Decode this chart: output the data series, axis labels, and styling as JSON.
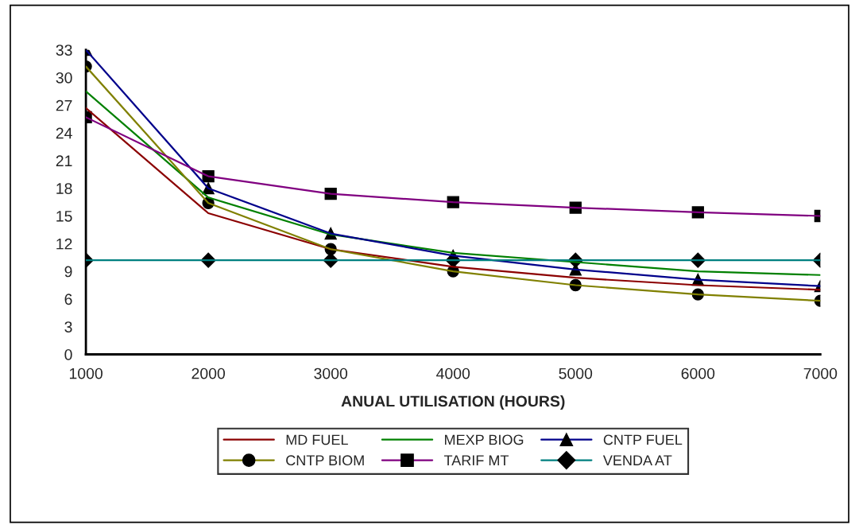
{
  "chart_data": {
    "type": "line",
    "xlabel": "ANUAL UTILISATION (HOURS)",
    "x": [
      1000,
      2000,
      3000,
      4000,
      5000,
      6000,
      7000
    ],
    "xlim": [
      1000,
      7000
    ],
    "xticks": [
      1000,
      2000,
      3000,
      4000,
      5000,
      6000,
      7000
    ],
    "ylim": [
      0,
      33
    ],
    "yticks": [
      0,
      3,
      6,
      9,
      12,
      15,
      18,
      21,
      24,
      27,
      30,
      33
    ],
    "grid": false,
    "legend": "bottom",
    "line_style": "solid",
    "series": [
      {
        "name": "MD FUEL",
        "color": "#8b0000",
        "marker": "none",
        "values": [
          26.7,
          15.3,
          11.4,
          9.5,
          8.3,
          7.5,
          7.0
        ]
      },
      {
        "name": "MEXP BIOG",
        "color": "#008000",
        "marker": "none",
        "values": [
          28.5,
          17.0,
          13.0,
          11.0,
          10.0,
          9.0,
          8.6
        ]
      },
      {
        "name": "CNTP FUEL",
        "color": "#00008b",
        "marker": "triangle",
        "values": [
          33.0,
          18.0,
          13.1,
          10.7,
          9.2,
          8.1,
          7.4
        ]
      },
      {
        "name": "CNTP BIOM",
        "color": "#808000",
        "marker": "circle",
        "values": [
          31.2,
          16.4,
          11.4,
          9.0,
          7.5,
          6.5,
          5.8
        ]
      },
      {
        "name": "TARIF MT",
        "color": "#800080",
        "marker": "square",
        "values": [
          25.7,
          19.3,
          17.4,
          16.5,
          15.9,
          15.4,
          15.0
        ]
      },
      {
        "name": "VENDA AT",
        "color": "#008080",
        "marker": "diamond",
        "values": [
          10.2,
          10.2,
          10.2,
          10.2,
          10.2,
          10.2,
          10.2
        ]
      }
    ]
  }
}
